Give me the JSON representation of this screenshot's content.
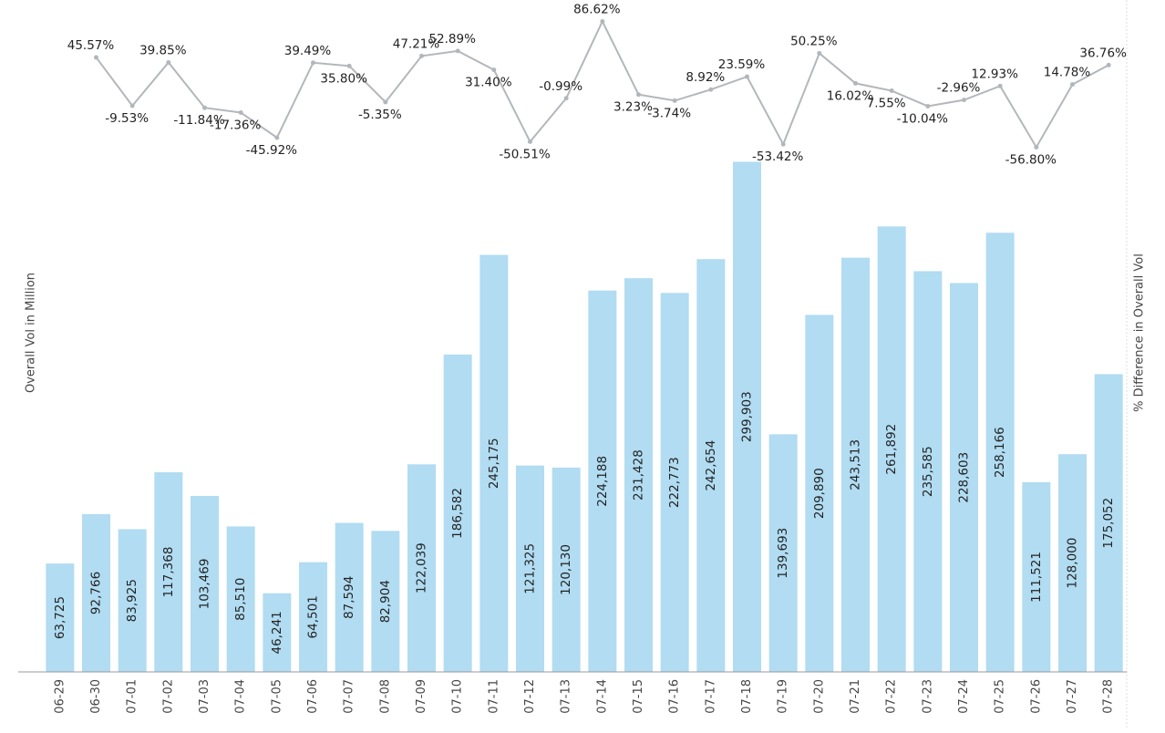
{
  "chart_data": {
    "type": "bar",
    "y_label": "Overall Vol in Million",
    "y2_label": "% Difference in Overall Vol",
    "categories": [
      "06-29",
      "06-30",
      "07-01",
      "07-02",
      "07-03",
      "07-04",
      "07-05",
      "07-06",
      "07-07",
      "07-08",
      "07-09",
      "07-10",
      "07-11",
      "07-12",
      "07-13",
      "07-14",
      "07-15",
      "07-16",
      "07-17",
      "07-18",
      "07-19",
      "07-20",
      "07-21",
      "07-22",
      "07-23",
      "07-24",
      "07-25",
      "07-26",
      "07-27",
      "07-28"
    ],
    "ylim": [
      0,
      395000
    ],
    "y2lim": [
      -655,
      111
    ],
    "series": [
      {
        "type": "bar",
        "color": "#b1dcf2",
        "values": [
          63725,
          92766,
          83925,
          117368,
          103469,
          85510,
          46241,
          64501,
          87594,
          82904,
          122039,
          186582,
          245175,
          121325,
          120130,
          224188,
          231428,
          222773,
          242654,
          299903,
          139693,
          209890,
          243513,
          261892,
          235585,
          228603,
          258166,
          111521,
          128000,
          175052
        ],
        "value_labels": [
          "63,725",
          "92,766",
          "83,925",
          "117,368",
          "103,469",
          "85,510",
          "46,241",
          "64,501",
          "87,594",
          "82,904",
          "122,039",
          "186,582",
          "245,175",
          "121,325",
          "120,130",
          "224,188",
          "231,428",
          "222,773",
          "242,654",
          "299,903",
          "139,693",
          "209,890",
          "243,513",
          "261,892",
          "235,585",
          "228,603",
          "258,166",
          "111,521",
          "128,000",
          "175,052"
        ]
      },
      {
        "type": "line",
        "axis": "y2",
        "color": "#b3b7bb",
        "values": [
          null,
          45.57,
          -9.53,
          39.85,
          -11.84,
          -17.36,
          -45.92,
          39.49,
          35.8,
          -5.35,
          47.21,
          52.89,
          31.4,
          -50.51,
          -0.99,
          86.62,
          3.23,
          -3.74,
          8.92,
          23.59,
          -53.42,
          50.25,
          16.02,
          7.55,
          -10.04,
          -2.96,
          12.93,
          -56.8,
          14.78,
          36.76
        ],
        "value_labels": [
          null,
          "45.57%",
          "-9.53%",
          "39.85%",
          "-11.84%",
          "-17.36%",
          "-45.92%",
          "39.49%",
          "35.80%",
          "-5.35%",
          "47.21%",
          "52.89%",
          "31.40%",
          "-50.51%",
          "-0.99%",
          "86.62%",
          "3.23%",
          "-3.74%",
          "8.92%",
          "23.59%",
          "-53.42%",
          "50.25%",
          "16.02%",
          "7.55%",
          "-10.04%",
          "-2.96%",
          "12.93%",
          "-56.80%",
          "14.78%",
          "36.76%"
        ]
      }
    ]
  }
}
